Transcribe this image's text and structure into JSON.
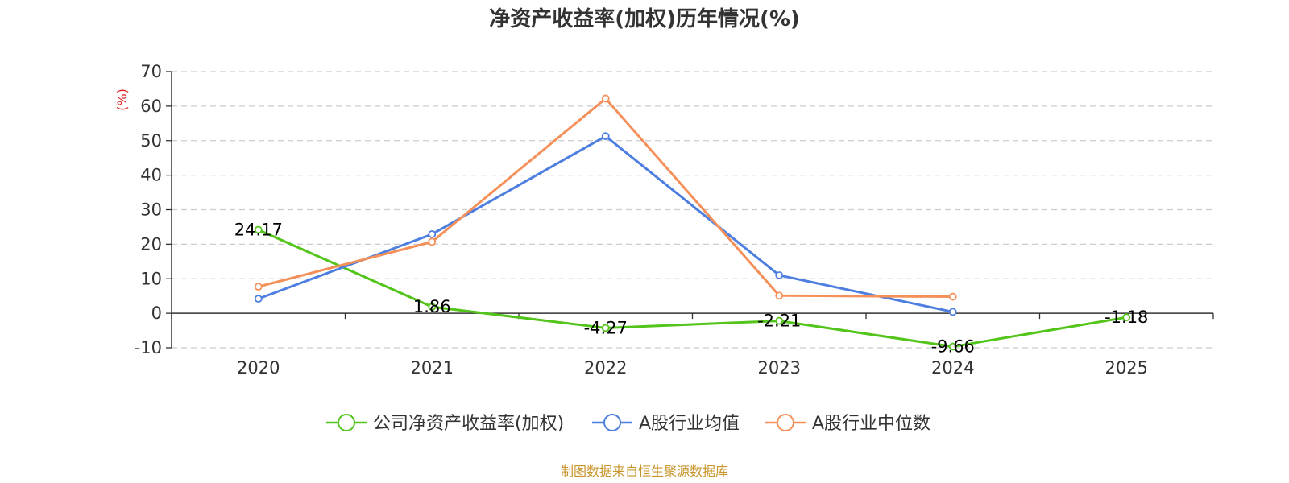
{
  "source_text": "制图数据来自恒生聚源数据库",
  "colors": {
    "company": "#52c41a",
    "industry_avg": "#4e7fe0",
    "industry_median": "#f5905a",
    "ylabel": "#e02020",
    "source": "#c8952a",
    "grid": "#cccccc",
    "axis": "#333333"
  },
  "chart_data": {
    "type": "line",
    "title": "净资产收益率(加权)历年情况(%)",
    "ylabel": "(%)",
    "xlabel": "",
    "categories": [
      "2020",
      "2021",
      "2022",
      "2023",
      "2024",
      "2025"
    ],
    "ylim": [
      -10,
      70
    ],
    "yticks": [
      -10,
      0,
      10,
      20,
      30,
      40,
      50,
      60,
      70
    ],
    "grid": true,
    "legend_position": "bottom",
    "series": [
      {
        "name": "公司净资产收益率(加权)",
        "values": [
          24.17,
          1.86,
          -4.27,
          -2.21,
          -9.66,
          -1.18
        ],
        "labels": [
          "24.17",
          "1.86",
          "-4.27",
          "-2.21",
          "-9.66",
          "-1.18"
        ]
      },
      {
        "name": "A股行业均值",
        "values": [
          4.2,
          22.9,
          51.3,
          11.0,
          0.4,
          null
        ]
      },
      {
        "name": "A股行业中位数",
        "values": [
          7.7,
          20.7,
          62.2,
          5.1,
          4.8,
          null
        ]
      }
    ]
  }
}
